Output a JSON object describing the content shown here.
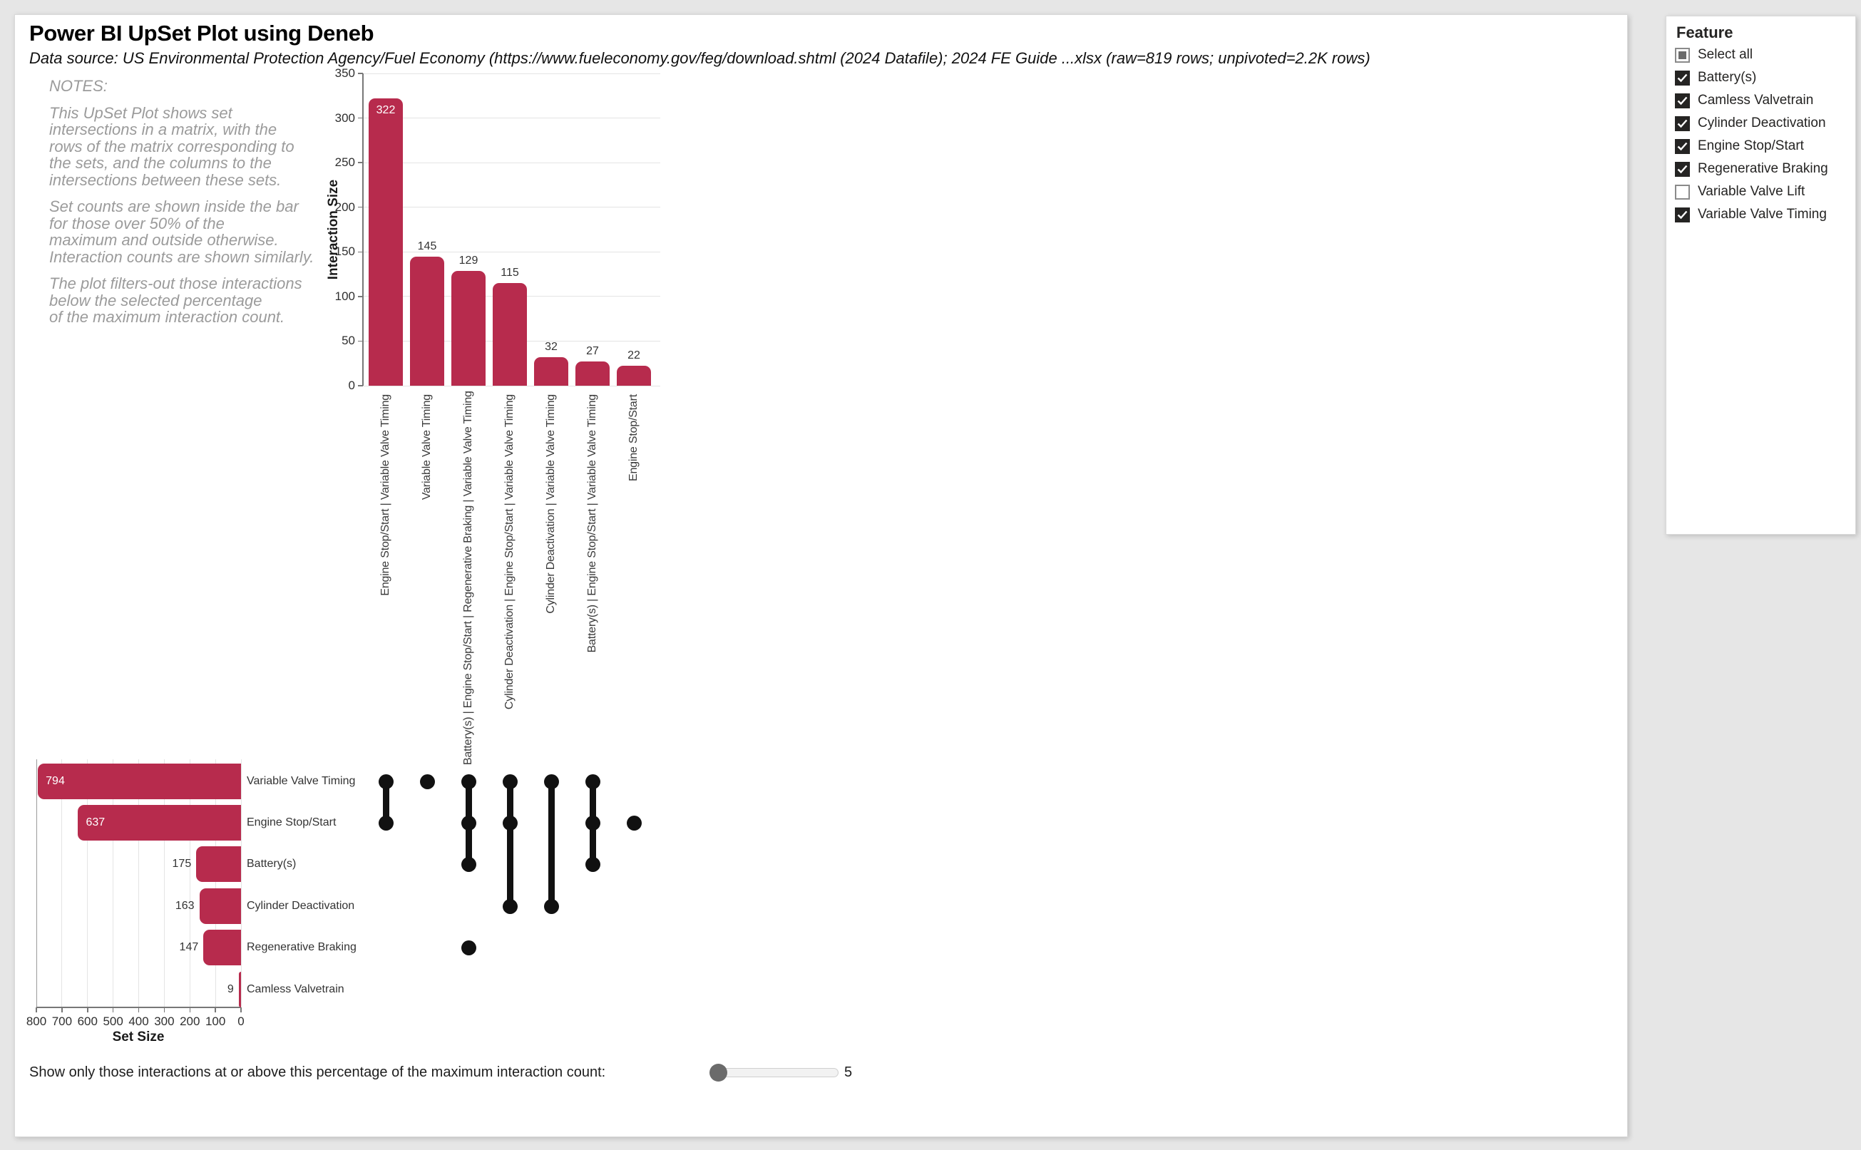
{
  "report": {
    "title": "Power BI UpSet Plot using Deneb",
    "subtitle": "Data source: US Environmental Protection Agency/Fuel Economy (https://www.fueleconomy.gov/feg/download.shtml (2024 Datafile); 2024 FE Guide ...xlsx (raw=819 rows; unpivoted=2.2K rows)",
    "notes": {
      "heading": "NOTES:",
      "paragraphs": [
        "This UpSet Plot shows set\nintersections in a matrix, with the\nrows of the matrix corresponding to\nthe sets, and the columns to the\nintersections between these sets.",
        "Set counts are shown inside the bar\nfor those over 50% of the\nmaximum and outside otherwise.\nInteraction counts are shown similarly.",
        "The plot filters-out those interactions\nbelow the selected percentage\nof the maximum interaction count."
      ]
    }
  },
  "colors": {
    "bar": "#b72b4d",
    "dot": "#111111",
    "page_background": "#e6e6e6"
  },
  "chart_data": [
    {
      "type": "bar",
      "name": "intersection-size",
      "title": "",
      "xlabel": "",
      "ylabel": "Interaction Size",
      "ylim": [
        0,
        350
      ],
      "yticks": [
        0,
        50,
        100,
        150,
        200,
        250,
        300,
        350
      ],
      "grid": true,
      "bar_color": "#b72b4d",
      "categories": [
        "Engine Stop/Start | Variable Valve Timing",
        "Variable Valve Timing",
        "Battery(s) | Engine Stop/Start | Regenerative Braking | Variable Valve Timing",
        "Cylinder Deactivation | Engine Stop/Start | Variable Valve Timing",
        "Cylinder Deactivation | Variable Valve Timing",
        "Battery(s) | Engine Stop/Start | Variable Valve Timing",
        "Engine Stop/Start"
      ],
      "values": [
        322,
        145,
        129,
        115,
        32,
        27,
        22
      ]
    },
    {
      "type": "bar",
      "name": "set-size",
      "orientation": "horizontal",
      "xlabel": "Set Size",
      "ylabel": "",
      "xlim": [
        800,
        0
      ],
      "xticks": [
        800,
        700,
        600,
        500,
        400,
        300,
        200,
        100,
        0
      ],
      "grid": true,
      "bar_color": "#b72b4d",
      "categories": [
        "Variable Valve Timing",
        "Engine Stop/Start",
        "Battery(s)",
        "Cylinder Deactivation",
        "Regenerative Braking",
        "Camless Valvetrain"
      ],
      "values": [
        794,
        637,
        175,
        163,
        147,
        9
      ]
    },
    {
      "type": "matrix",
      "name": "upset-membership",
      "dot_color": "#111111",
      "rows": [
        "Variable Valve Timing",
        "Engine Stop/Start",
        "Battery(s)",
        "Cylinder Deactivation",
        "Regenerative Braking",
        "Camless Valvetrain"
      ],
      "columns": [
        {
          "intersection": "Engine Stop/Start | Variable Valve Timing",
          "dots": [
            0,
            1
          ],
          "line": [
            0,
            1
          ]
        },
        {
          "intersection": "Variable Valve Timing",
          "dots": [
            0
          ],
          "line": null
        },
        {
          "intersection": "Battery(s) | Engine Stop/Start | Regenerative Braking | Variable Valve Timing",
          "dots": [
            0,
            1,
            2,
            4
          ],
          "line": [
            0,
            2
          ]
        },
        {
          "intersection": "Cylinder Deactivation | Engine Stop/Start | Variable Valve Timing",
          "dots": [
            0,
            1,
            3
          ],
          "line": [
            0,
            3
          ]
        },
        {
          "intersection": "Cylinder Deactivation | Variable Valve Timing",
          "dots": [
            0,
            3
          ],
          "line": [
            0,
            3
          ]
        },
        {
          "intersection": "Battery(s) | Engine Stop/Start | Variable Valve Timing",
          "dots": [
            0,
            1,
            2
          ],
          "line": [
            0,
            2
          ]
        },
        {
          "intersection": "Engine Stop/Start",
          "dots": [
            1
          ],
          "line": null
        }
      ]
    }
  ],
  "slider": {
    "label": "Show only those interactions at or above this percentage of the maximum interaction count:",
    "value": "5"
  },
  "feature_panel": {
    "title": "Feature",
    "items": [
      {
        "label": "Select all",
        "state": "indeterminate"
      },
      {
        "label": "Battery(s)",
        "state": "checked"
      },
      {
        "label": "Camless Valvetrain",
        "state": "checked"
      },
      {
        "label": "Cylinder Deactivation",
        "state": "checked"
      },
      {
        "label": "Engine Stop/Start",
        "state": "checked"
      },
      {
        "label": "Regenerative Braking",
        "state": "checked"
      },
      {
        "label": "Variable Valve Lift",
        "state": "unchecked"
      },
      {
        "label": "Variable Valve Timing",
        "state": "checked"
      }
    ]
  }
}
